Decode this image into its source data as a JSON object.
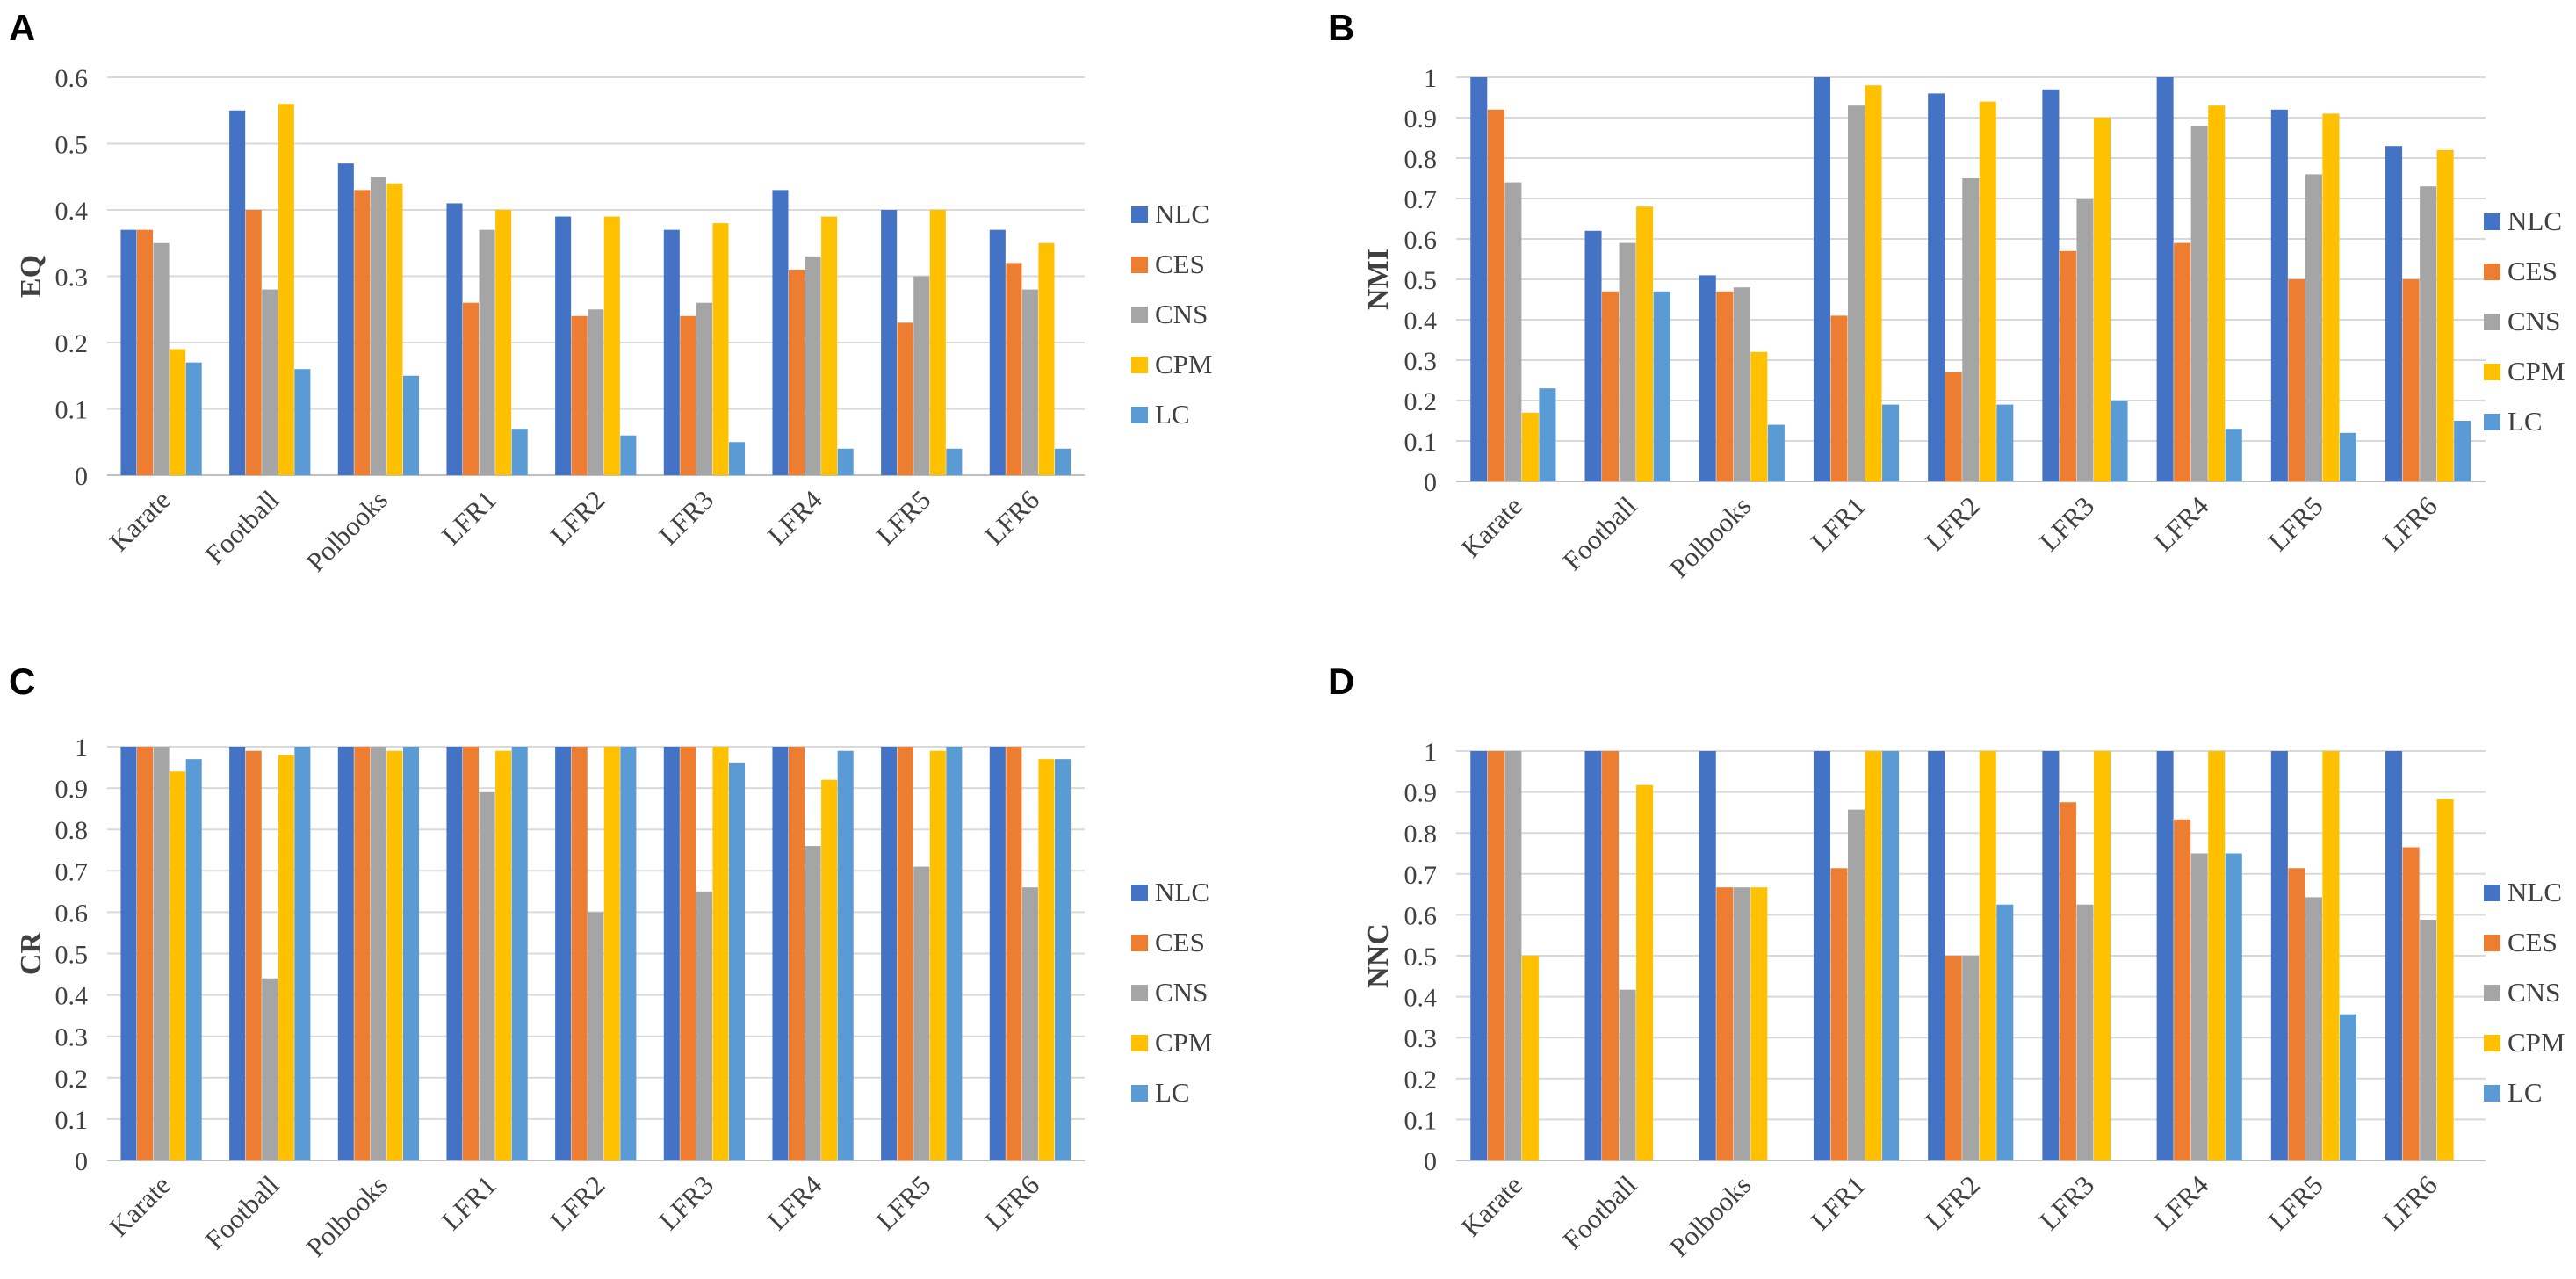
{
  "series_colors": {
    "NLC": "#4472C4",
    "CES": "#ED7D31",
    "CNS": "#A5A5A5",
    "CPM": "#FFC000",
    "LC": "#5B9BD5"
  },
  "chart_data": [
    {
      "type": "bar",
      "panel": "A",
      "title": "",
      "xlabel": "",
      "ylabel": "EQ",
      "ylim": [
        0,
        0.6
      ],
      "yticks": [
        "0",
        "0.1",
        "0.2",
        "0.3",
        "0.4",
        "0.5",
        "0.6"
      ],
      "grid": true,
      "legend": "right",
      "categories": [
        "Karate",
        "Football",
        "Polbooks",
        "LFR1",
        "LFR2",
        "LFR3",
        "LFR4",
        "LFR5",
        "LFR6"
      ],
      "series": [
        {
          "name": "NLC",
          "values": [
            0.37,
            0.55,
            0.47,
            0.41,
            0.39,
            0.37,
            0.43,
            0.4,
            0.37
          ]
        },
        {
          "name": "CES",
          "values": [
            0.37,
            0.4,
            0.43,
            0.26,
            0.24,
            0.24,
            0.31,
            0.23,
            0.32
          ]
        },
        {
          "name": "CNS",
          "values": [
            0.35,
            0.28,
            0.45,
            0.37,
            0.25,
            0.26,
            0.33,
            0.3,
            0.28
          ]
        },
        {
          "name": "CPM",
          "values": [
            0.19,
            0.56,
            0.44,
            0.4,
            0.39,
            0.38,
            0.39,
            0.4,
            0.35
          ]
        },
        {
          "name": "LC",
          "values": [
            0.17,
            0.16,
            0.15,
            0.07,
            0.06,
            0.05,
            0.04,
            0.04,
            0.04
          ]
        }
      ]
    },
    {
      "type": "bar",
      "panel": "B",
      "title": "",
      "xlabel": "",
      "ylabel": "NMI",
      "ylim": [
        0,
        1
      ],
      "yticks": [
        "0",
        "0.1",
        "0.2",
        "0.3",
        "0.4",
        "0.5",
        "0.6",
        "0.7",
        "0.8",
        "0.9",
        "1"
      ],
      "grid": true,
      "legend": "right",
      "categories": [
        "Karate",
        "Football",
        "Polbooks",
        "LFR1",
        "LFR2",
        "LFR3",
        "LFR4",
        "LFR5",
        "LFR6"
      ],
      "series": [
        {
          "name": "NLC",
          "values": [
            1.0,
            0.62,
            0.51,
            1.0,
            0.96,
            0.97,
            1.0,
            0.92,
            0.83
          ]
        },
        {
          "name": "CES",
          "values": [
            0.92,
            0.47,
            0.47,
            0.41,
            0.27,
            0.57,
            0.59,
            0.5,
            0.5
          ]
        },
        {
          "name": "CNS",
          "values": [
            0.74,
            0.59,
            0.48,
            0.93,
            0.75,
            0.7,
            0.88,
            0.76,
            0.73
          ]
        },
        {
          "name": "CPM",
          "values": [
            0.17,
            0.68,
            0.32,
            0.98,
            0.94,
            0.9,
            0.93,
            0.91,
            0.82
          ]
        },
        {
          "name": "LC",
          "values": [
            0.23,
            0.47,
            0.14,
            0.19,
            0.19,
            0.2,
            0.13,
            0.12,
            0.15
          ]
        }
      ]
    },
    {
      "type": "bar",
      "panel": "C",
      "title": "",
      "xlabel": "",
      "ylabel": "CR",
      "ylim": [
        0,
        1
      ],
      "yticks": [
        "0",
        "0.1",
        "0.2",
        "0.3",
        "0.4",
        "0.5",
        "0.6",
        "0.7",
        "0.8",
        "0.9",
        "1"
      ],
      "grid": true,
      "legend": "right",
      "categories": [
        "Karate",
        "Football",
        "Polbooks",
        "LFR1",
        "LFR2",
        "LFR3",
        "LFR4",
        "LFR5",
        "LFR6"
      ],
      "series": [
        {
          "name": "NLC",
          "values": [
            1.0,
            1.0,
            1.0,
            1.0,
            1.0,
            1.0,
            1.0,
            1.0,
            1.0
          ]
        },
        {
          "name": "CES",
          "values": [
            1.0,
            0.99,
            1.0,
            1.0,
            1.0,
            1.0,
            1.0,
            1.0,
            1.0
          ]
        },
        {
          "name": "CNS",
          "values": [
            1.0,
            0.44,
            1.0,
            0.89,
            0.6,
            0.65,
            0.76,
            0.71,
            0.66
          ]
        },
        {
          "name": "CPM",
          "values": [
            0.94,
            0.98,
            0.99,
            0.99,
            1.0,
            1.0,
            0.92,
            0.99,
            0.97
          ]
        },
        {
          "name": "LC",
          "values": [
            0.97,
            1.0,
            1.0,
            1.0,
            1.0,
            0.96,
            0.99,
            1.0,
            0.97
          ]
        }
      ]
    },
    {
      "type": "bar",
      "panel": "D",
      "title": "",
      "xlabel": "",
      "ylabel": "NNC",
      "ylim": [
        0,
        1
      ],
      "yticks": [
        "0",
        "0.1",
        "0.2",
        "0.3",
        "0.4",
        "0.5",
        "0.6",
        "0.7",
        "0.8",
        "0.9",
        "1"
      ],
      "grid": true,
      "legend": "right",
      "categories": [
        "Karate",
        "Football",
        "Polbooks",
        "LFR1",
        "LFR2",
        "LFR3",
        "LFR4",
        "LFR5",
        "LFR6"
      ],
      "series": [
        {
          "name": "NLC",
          "values": [
            1.0,
            1.0,
            1.0,
            1.0,
            1.0,
            1.0,
            1.0,
            1.0,
            1.0
          ]
        },
        {
          "name": "CES",
          "values": [
            1.0,
            1.0,
            0.667,
            0.714,
            0.5,
            0.875,
            0.833,
            0.714,
            0.765
          ]
        },
        {
          "name": "CNS",
          "values": [
            1.0,
            0.417,
            0.667,
            0.857,
            0.5,
            0.625,
            0.75,
            0.643,
            0.588
          ]
        },
        {
          "name": "CPM",
          "values": [
            0.5,
            0.917,
            0.667,
            1.0,
            1.0,
            1.0,
            1.0,
            1.0,
            0.882
          ]
        },
        {
          "name": "LC",
          "values": [
            0,
            0,
            0,
            1.0,
            0.625,
            0,
            0.75,
            0.357,
            0
          ]
        }
      ]
    }
  ]
}
